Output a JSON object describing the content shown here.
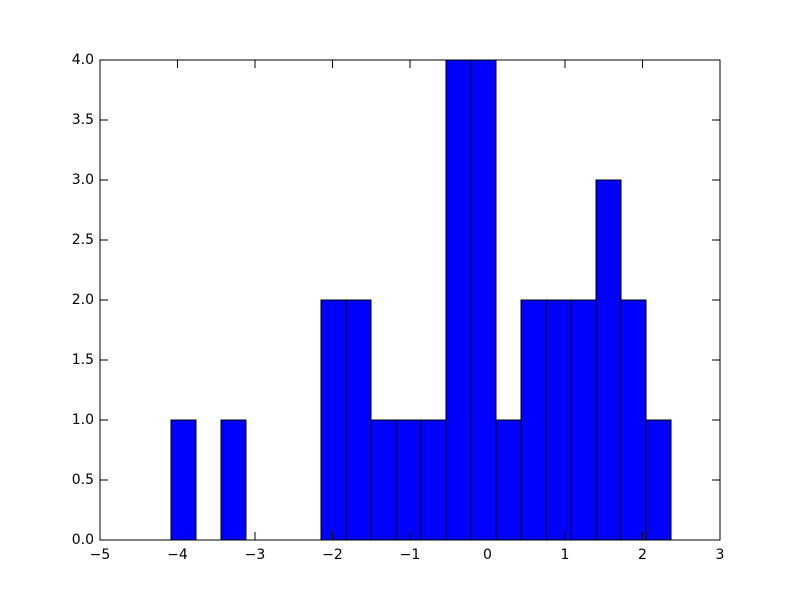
{
  "chart_data": {
    "type": "histogram",
    "bins": [
      -4.084,
      -3.7614,
      -3.4388,
      -3.1162,
      -2.7936,
      -2.471,
      -2.1484,
      -1.8258,
      -1.5032,
      -1.1806,
      -0.858,
      -0.5354,
      -0.2128,
      0.1098,
      0.4324,
      0.755,
      1.0776,
      1.4002,
      1.7228,
      2.0454,
      2.368
    ],
    "values": [
      1,
      0,
      1,
      0,
      0,
      0,
      2,
      2,
      1,
      1,
      1,
      4,
      4,
      1,
      2,
      2,
      2,
      3,
      2,
      1
    ],
    "color": "#0000ff",
    "xlim": [
      -5,
      3
    ],
    "xticks": [
      {
        "value": -5,
        "label": "−5"
      },
      {
        "value": -4,
        "label": "−4"
      },
      {
        "value": -3,
        "label": "−3"
      },
      {
        "value": -2,
        "label": "−2"
      },
      {
        "value": -1,
        "label": "−1"
      },
      0,
      1,
      2,
      3
    ],
    "ylim": [
      0,
      4
    ],
    "yticks": [
      {
        "value": 0,
        "label": "0.0"
      },
      {
        "value": 0.5,
        "label": "0.5"
      },
      {
        "value": 1,
        "label": "1.0"
      },
      {
        "value": 1.5,
        "label": "1.5"
      },
      {
        "value": 2,
        "label": "2.0"
      },
      {
        "value": 2.5,
        "label": "2.5"
      },
      {
        "value": 3,
        "label": "3.0"
      },
      {
        "value": 3.5,
        "label": "3.5"
      },
      {
        "value": 4,
        "label": "4.0"
      }
    ],
    "grid": false
  }
}
